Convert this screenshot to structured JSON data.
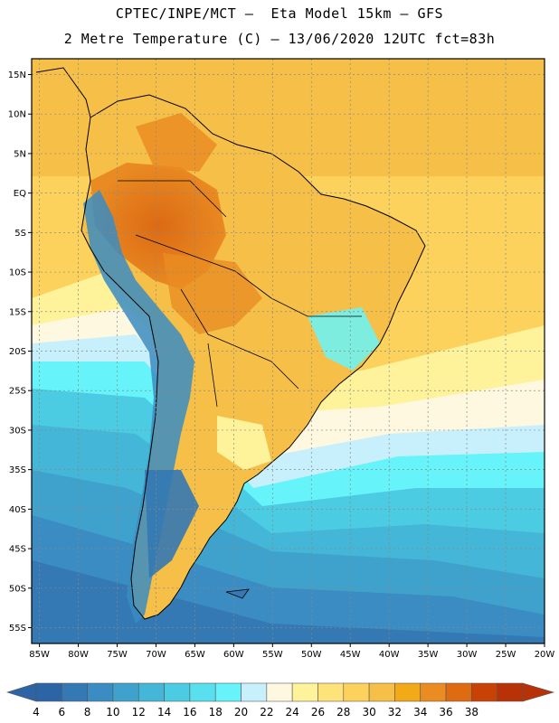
{
  "header": {
    "line1": "CPTEC/INPE/MCT –  Eta Model 15km – GFS",
    "line2": "2 Metre Temperature (C) – 13/06/2020 12UTC fct=83h"
  },
  "map": {
    "lat_labels": [
      "15N",
      "10N",
      "5N",
      "EQ",
      "5S",
      "10S",
      "15S",
      "20S",
      "25S",
      "30S",
      "35S",
      "40S",
      "45S",
      "50S",
      "55S"
    ],
    "lon_labels": [
      "85W",
      "80W",
      "75W",
      "70W",
      "65W",
      "60W",
      "55W",
      "50W",
      "45W",
      "40W",
      "35W",
      "30W",
      "25W",
      "20W"
    ],
    "lat_range": [
      -57,
      17
    ],
    "lon_range": [
      -86,
      -20
    ]
  },
  "colorbar": {
    "labels": [
      "4",
      "6",
      "8",
      "10",
      "12",
      "14",
      "16",
      "18",
      "20",
      "22",
      "24",
      "26",
      "28",
      "30",
      "32",
      "34",
      "36",
      "38"
    ],
    "colors": [
      "#2c64a6",
      "#3478b4",
      "#3a8cc2",
      "#3ea2cc",
      "#44b6d8",
      "#4ccce2",
      "#58e0ee",
      "#66f4fa",
      "#c8f0fc",
      "#fef8e0",
      "#fef29a",
      "#fee37a",
      "#fcd25c",
      "#f6c048",
      "#f2aa18",
      "#ea8c22",
      "#de6a12",
      "#c84206",
      "#b83208"
    ]
  }
}
